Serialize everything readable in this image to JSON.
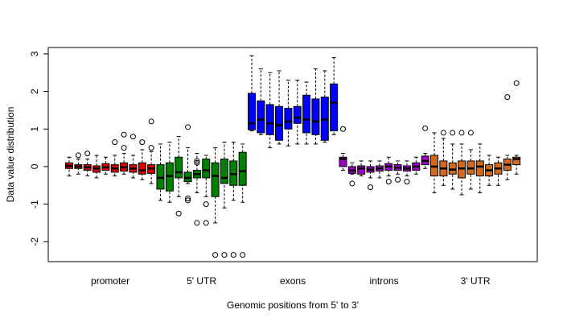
{
  "chart_data": {
    "type": "box",
    "x_label": "Genomic positions from 5' to 3'",
    "y_label": "Data value distribution",
    "ylim": [
      -2.53,
      3.17
    ],
    "yticks": [
      -2,
      -1,
      0,
      1,
      2,
      3
    ],
    "groups": [
      {
        "label": "promoter",
        "color": "#dd0000",
        "boxes": [
          {
            "whislo": -0.25,
            "q1": -0.05,
            "med": 0.02,
            "q3": 0.1,
            "whishi": 0.25
          },
          {
            "whislo": -0.2,
            "q1": -0.05,
            "med": 0,
            "q3": 0.05,
            "whishi": 0.2,
            "fliers": [
              0.3
            ]
          },
          {
            "whislo": -0.25,
            "q1": -0.1,
            "med": -0.02,
            "q3": 0.05,
            "whishi": 0.2,
            "fliers": [
              0.35
            ]
          },
          {
            "whislo": -0.3,
            "q1": -0.15,
            "med": -0.05,
            "q3": 0.02,
            "whishi": 0.3
          },
          {
            "whislo": -0.2,
            "q1": -0.1,
            "med": -0.02,
            "q3": 0.08,
            "whishi": 0.25
          },
          {
            "whislo": -0.25,
            "q1": -0.15,
            "med": -0.05,
            "q3": 0.05,
            "whishi": 0.3,
            "fliers": [
              0.65
            ]
          },
          {
            "whislo": -0.2,
            "q1": -0.12,
            "med": -0.02,
            "q3": 0.1,
            "whishi": 0.35,
            "fliers": [
              0.85,
              0.5
            ]
          },
          {
            "whislo": -0.3,
            "q1": -0.15,
            "med": -0.05,
            "q3": 0.05,
            "whishi": 0.3,
            "fliers": [
              0.8
            ]
          },
          {
            "whislo": -0.35,
            "q1": -0.2,
            "med": -0.1,
            "q3": 0.1,
            "whishi": 0.45,
            "fliers": [
              0.65
            ]
          },
          {
            "whislo": -0.45,
            "q1": -0.18,
            "med": -0.05,
            "q3": 0.05,
            "whishi": 0.4,
            "fliers": [
              1.2,
              0.5
            ]
          }
        ]
      },
      {
        "label": "5' UTR",
        "color": "#008000",
        "boxes": [
          {
            "whislo": -0.9,
            "q1": -0.6,
            "med": -0.3,
            "q3": 0.05,
            "whishi": 0.6
          },
          {
            "whislo": -0.95,
            "q1": -0.65,
            "med": -0.25,
            "q3": 0.1,
            "whishi": 0.65
          },
          {
            "whislo": -0.8,
            "q1": -0.3,
            "med": -0.15,
            "q3": 0.25,
            "whishi": 0.8,
            "fliers": [
              -1.25
            ]
          },
          {
            "whislo": -0.45,
            "q1": -0.4,
            "med": -0.3,
            "q3": -0.15,
            "whishi": 0.5,
            "fliers": [
              -0.9,
              -0.85,
              1.05
            ]
          },
          {
            "whislo": -0.7,
            "q1": -0.3,
            "med": -0.2,
            "q3": -0.1,
            "whishi": 0.35,
            "fliers": [
              0.15,
              0.1,
              -1.5
            ]
          },
          {
            "whislo": -0.8,
            "q1": -0.3,
            "med": -0.1,
            "q3": 0.2,
            "whishi": 0.3,
            "fliers": [
              -1.0,
              -1.5
            ]
          },
          {
            "whislo": -1.5,
            "q1": -0.8,
            "med": -0.25,
            "q3": 0.1,
            "whishi": 0.5,
            "fliers": [
              -2.35
            ]
          },
          {
            "whislo": -1.1,
            "q1": -0.45,
            "med": -0.3,
            "q3": 0.2,
            "whishi": 0.65,
            "fliers": [
              -2.35
            ]
          },
          {
            "whislo": -0.9,
            "q1": -0.5,
            "med": -0.2,
            "q3": 0.15,
            "whishi": 0.65,
            "fliers": [
              -2.35
            ]
          },
          {
            "whislo": -0.95,
            "q1": -0.5,
            "med": -0.12,
            "q3": 0.38,
            "whishi": 0.6,
            "fliers": [
              -2.35
            ]
          }
        ]
      },
      {
        "label": "exons",
        "color": "#0000ff",
        "boxes": [
          {
            "whislo": 0.95,
            "q1": 0.98,
            "med": 1.15,
            "q3": 1.95,
            "whishi": 2.95
          },
          {
            "whislo": 0.85,
            "q1": 0.9,
            "med": 1.25,
            "q3": 1.75,
            "whishi": 2.6
          },
          {
            "whislo": 0.5,
            "q1": 0.85,
            "med": 1.15,
            "q3": 1.65,
            "whishi": 2.5
          },
          {
            "whislo": 0.6,
            "q1": 0.7,
            "med": 1.1,
            "q3": 1.6,
            "whishi": 2.55
          },
          {
            "whislo": 0.55,
            "q1": 1.0,
            "med": 1.2,
            "q3": 1.55,
            "whishi": 2.3
          },
          {
            "whislo": 0.6,
            "q1": 1.15,
            "med": 1.3,
            "q3": 1.6,
            "whishi": 2.3
          },
          {
            "whislo": 0.6,
            "q1": 0.9,
            "med": 1.25,
            "q3": 1.9,
            "whishi": 2.25
          },
          {
            "whislo": 0.6,
            "q1": 0.85,
            "med": 1.2,
            "q3": 1.8,
            "whishi": 2.6
          },
          {
            "whislo": 0.65,
            "q1": 0.7,
            "med": 1.25,
            "q3": 1.85,
            "whishi": 2.55
          },
          {
            "whislo": 0.85,
            "q1": 0.95,
            "med": 1.7,
            "q3": 2.2,
            "whishi": 2.9
          }
        ]
      },
      {
        "label": "introns",
        "color": "#a000c8",
        "boxes": [
          {
            "whislo": -0.1,
            "q1": 0,
            "med": 0.2,
            "q3": 0.25,
            "whishi": 0.35,
            "fliers": [
              1.0
            ]
          },
          {
            "whislo": -0.2,
            "q1": -0.18,
            "med": -0.1,
            "q3": 0,
            "whishi": 0.1,
            "fliers": [
              -0.45
            ]
          },
          {
            "whislo": -0.25,
            "q1": -0.2,
            "med": -0.05,
            "q3": 0.02,
            "whishi": 0.15
          },
          {
            "whislo": -0.3,
            "q1": -0.15,
            "med": -0.08,
            "q3": 0,
            "whishi": 0.15,
            "fliers": [
              -0.55
            ]
          },
          {
            "whislo": -0.3,
            "q1": -0.12,
            "med": -0.05,
            "q3": 0.02,
            "whishi": 0.15
          },
          {
            "whislo": -0.25,
            "q1": -0.1,
            "med": 0,
            "q3": 0.08,
            "whishi": 0.25,
            "fliers": [
              -0.4
            ]
          },
          {
            "whislo": -0.2,
            "q1": -0.1,
            "med": -0.03,
            "q3": 0.05,
            "whishi": 0.15,
            "fliers": [
              -0.35
            ]
          },
          {
            "whislo": -0.25,
            "q1": -0.12,
            "med": -0.05,
            "q3": 0.02,
            "whishi": 0.15,
            "fliers": [
              -0.4
            ]
          },
          {
            "whislo": -0.2,
            "q1": -0.1,
            "med": 0,
            "q3": 0.1,
            "whishi": 0.25
          },
          {
            "whislo": -0.05,
            "q1": 0.05,
            "med": 0.15,
            "q3": 0.28,
            "whishi": 0.35,
            "fliers": [
              1.02
            ]
          }
        ]
      },
      {
        "label": "3' UTR",
        "color": "#d2691e",
        "boxes": [
          {
            "whislo": -0.7,
            "q1": -0.25,
            "med": 0.0,
            "q3": 0.3,
            "whishi": 0.9
          },
          {
            "whislo": -0.5,
            "q1": -0.25,
            "med": -0.05,
            "q3": 0.15,
            "whishi": 0.75,
            "fliers": [
              0.9
            ]
          },
          {
            "whislo": -0.6,
            "q1": -0.2,
            "med": -0.08,
            "q3": 0.1,
            "whishi": 0.6,
            "fliers": [
              0.9
            ]
          },
          {
            "whislo": -0.75,
            "q1": -0.3,
            "med": -0.05,
            "q3": 0.15,
            "whishi": 0.6,
            "fliers": [
              0.9
            ]
          },
          {
            "whislo": -0.6,
            "q1": -0.2,
            "med": -0.05,
            "q3": 0.15,
            "whishi": 0.45,
            "fliers": [
              0.9
            ]
          },
          {
            "whislo": -0.7,
            "q1": -0.25,
            "med": 0.0,
            "q3": 0.15,
            "whishi": 0.6
          },
          {
            "whislo": -0.5,
            "q1": -0.25,
            "med": -0.1,
            "q3": 0.05,
            "whishi": 0.3
          },
          {
            "whislo": -0.5,
            "q1": -0.2,
            "med": -0.05,
            "q3": 0.1,
            "whishi": 0.25
          },
          {
            "whislo": -0.35,
            "q1": -0.1,
            "med": 0.05,
            "q3": 0.2,
            "whishi": 0.3,
            "fliers": [
              1.85
            ]
          },
          {
            "whislo": -0.2,
            "q1": 0.05,
            "med": 0.2,
            "q3": 0.25,
            "whishi": 0.3,
            "fliers": [
              2.22
            ]
          }
        ]
      }
    ]
  }
}
